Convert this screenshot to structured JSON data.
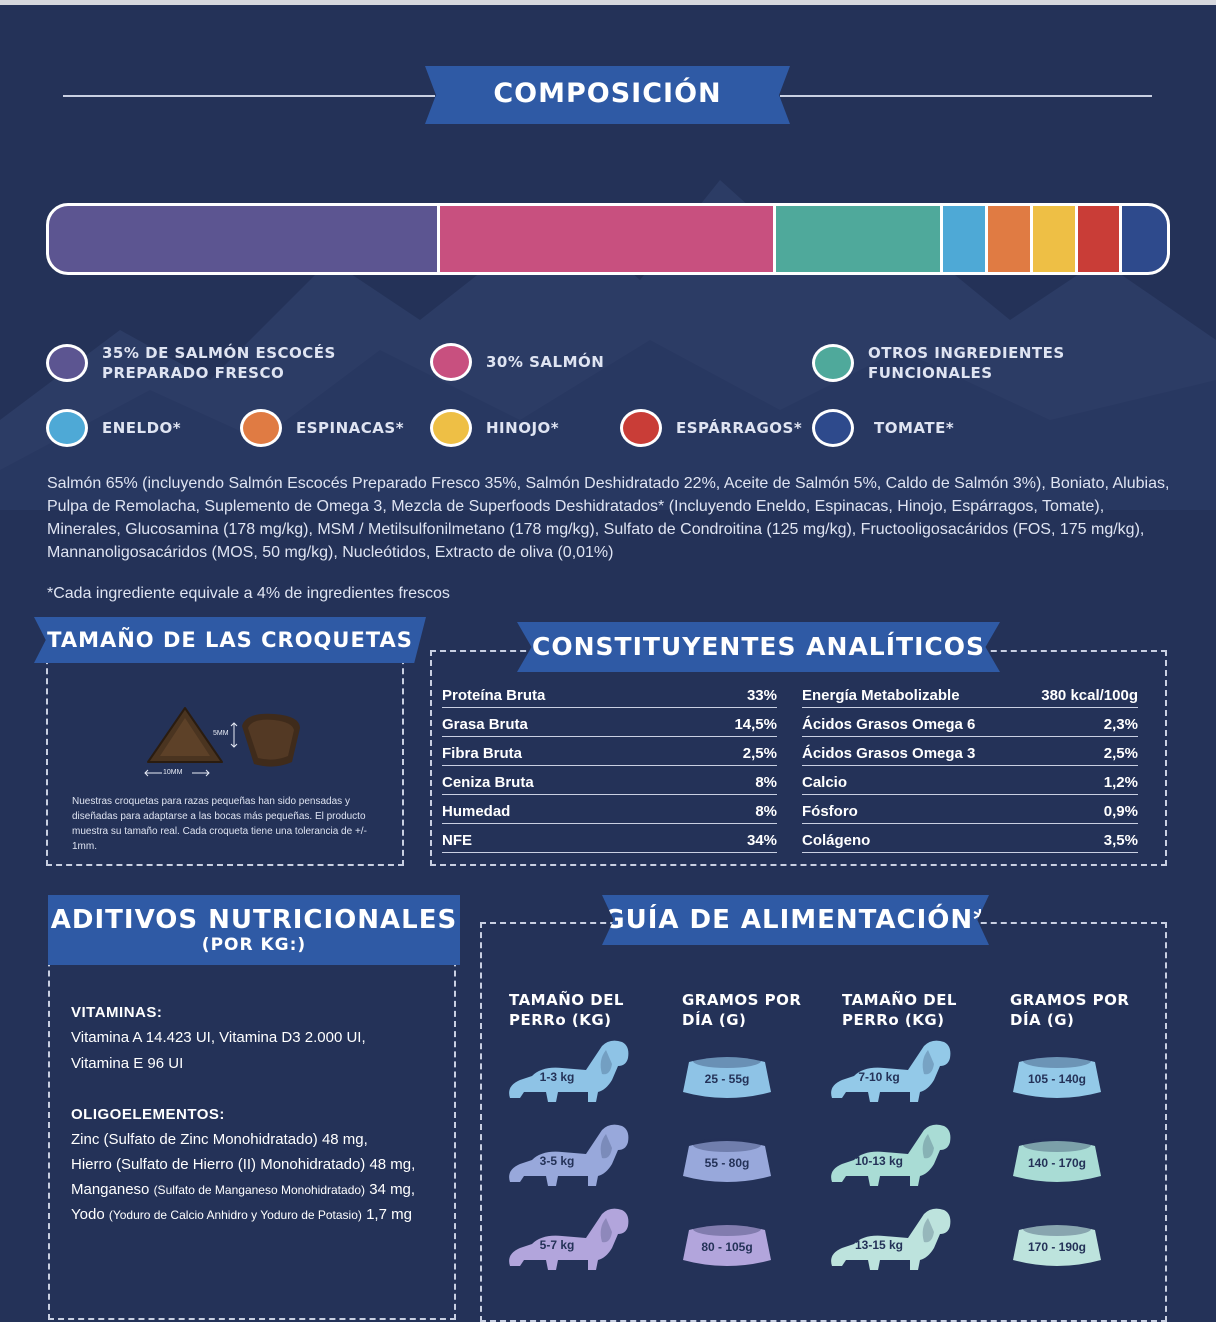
{
  "composicion": {
    "title": "COMPOSICIÓN",
    "bar": [
      {
        "name": "salmon-escoces",
        "value": 35,
        "color": "#5c5591"
      },
      {
        "name": "salmon",
        "value": 30,
        "color": "#c8507f"
      },
      {
        "name": "otros",
        "value": 15,
        "color": "#4fa99b"
      },
      {
        "name": "eneldo",
        "value": 4,
        "color": "#4ea9d6"
      },
      {
        "name": "espinacas",
        "value": 4,
        "color": "#e07b43"
      },
      {
        "name": "hinojo",
        "value": 4,
        "color": "#eebf45"
      },
      {
        "name": "esparragos",
        "value": 4,
        "color": "#c93d37"
      },
      {
        "name": "tomate",
        "value": 4,
        "color": "#2e4a8c"
      }
    ],
    "legend": [
      {
        "label": "35% DE SALMÓN ESCOCÉS\nPREPARADO FRESCO",
        "color": "#5c5591"
      },
      {
        "label": "30% SALMÓN",
        "color": "#c8507f"
      },
      {
        "label": "OTROS INGREDIENTES\nFUNCIONALES",
        "color": "#4fa99b"
      },
      {
        "label": "ENELDO*",
        "color": "#4ea9d6"
      },
      {
        "label": "ESPINACAS*",
        "color": "#e07b43"
      },
      {
        "label": "HINOJO*",
        "color": "#eebf45"
      },
      {
        "label": "ESPÁRRAGOS*",
        "color": "#c93d37"
      },
      {
        "label": "TOMATE*",
        "color": "#2e4a8c"
      }
    ],
    "ingredients": "Salmón 65% (incluyendo Salmón Escocés Preparado Fresco 35%, Salmón Deshidratado 22%, Aceite de Salmón 5%, Caldo de Salmón 3%), Boniato, Alubias, Pulpa de Remolacha, Suplemento de Omega 3, Mezcla de Superfoods Deshidratados* (Incluyendo Eneldo, Espinacas, Hinojo, Espárragos, Tomate), Minerales, Glucosamina (178 mg/kg), MSM / Metilsulfonilmetano (178 mg/kg), Sulfato de Condroitina (125 mg/kg), Fructooligosacáridos (FOS, 175 mg/kg), Mannanoligosacáridos (MOS, 50 mg/kg), Nucleótidos, Extracto de oliva (0,01%)",
    "footnote": "*Cada ingrediente equivale a 4% de ingredientes frescos"
  },
  "croquetas": {
    "title": "TAMAÑO DE LAS CROQUETAS",
    "width_label": "10MM",
    "height_label": "5MM",
    "caption": "Nuestras croquetas para razas pequeñas han sido pensadas y diseñadas para adaptarse a las bocas más pequeñas. El producto muestra su tamaño real. Cada croqueta tiene una tolerancia de +/- 1mm."
  },
  "analiticos": {
    "title": "CONSTITUYENTES ANALÍTICOS",
    "left": [
      {
        "label": "Proteína Bruta",
        "value": "33%"
      },
      {
        "label": "Grasa Bruta",
        "value": "14,5%"
      },
      {
        "label": "Fibra Bruta",
        "value": "2,5%"
      },
      {
        "label": "Ceniza Bruta",
        "value": "8%"
      },
      {
        "label": "Humedad",
        "value": "8%"
      },
      {
        "label": "NFE",
        "value": "34%"
      }
    ],
    "right": [
      {
        "label": "Energía Metabolizable",
        "value": "380 kcal/100g"
      },
      {
        "label": "Ácidos Grasos Omega 6",
        "value": "2,3%"
      },
      {
        "label": "Ácidos Grasos Omega 3",
        "value": "2,5%"
      },
      {
        "label": "Calcio",
        "value": "1,2%"
      },
      {
        "label": "Fósforo",
        "value": "0,9%"
      },
      {
        "label": "Colágeno",
        "value": "3,5%"
      }
    ]
  },
  "aditivos": {
    "title": "ADITIVOS NUTRICIONALES",
    "subtitle": "(POR KG:)",
    "vitaminas_title": "VITAMINAS:",
    "vitaminas": [
      "Vitamina A 14.423 UI, Vitamina D3 2.000 UI,",
      "Vitamina E 96 UI"
    ],
    "oligo_title": "OLIGOELEMENTOS:",
    "oligo": [
      {
        "main": "Zinc (Sulfato de Zinc Monohidratado) 48 mg,",
        "detail": ""
      },
      {
        "main": "Hierro (Sulfato de Hierro (II) Monohidratado) 48 mg,",
        "detail": ""
      },
      {
        "main": "Manganeso ",
        "detail": "(Sulfato de Manganeso Monohidratado)",
        "tail": " 34 mg,"
      },
      {
        "main": "Yodo ",
        "detail": "(Yoduro de Calcio Anhidro y Yoduro de Potasio)",
        "tail": " 1,7 mg"
      }
    ]
  },
  "guia": {
    "title": "GUÍA DE ALIMENTACIÓN*",
    "headers": [
      "TAMAÑO DEL\nPERRo (KG)",
      "GRAMOS POR\nDÍA (G)",
      "TAMAÑO DEL\nPERRo (KG)",
      "GRAMOS POR\nDÍA (G)"
    ],
    "rows": [
      {
        "dog1": "1-3 kg",
        "grams1": "25 - 55g",
        "dog2": "7-10 kg",
        "grams2": "105 - 140g"
      },
      {
        "dog1": "3-5 kg",
        "grams1": "55 - 80g",
        "dog2": "10-13 kg",
        "grams2": "140 - 170g"
      },
      {
        "dog1": "5-7 kg",
        "grams1": "80 - 105g",
        "dog2": "13-15 kg",
        "grams2": "170 - 190g"
      }
    ],
    "colors": {
      "dog1": [
        "#8ec3e6",
        "#98a8db",
        "#b2a5dc"
      ],
      "dog2": [
        "#93c9e8",
        "#a9dcd5",
        "#bde3dd"
      ],
      "bowl1": [
        "#8ec3e6",
        "#98a8db",
        "#b2a5dc"
      ],
      "bowl2": [
        "#93c9e8",
        "#a9dcd5",
        "#bde3dd"
      ]
    }
  }
}
